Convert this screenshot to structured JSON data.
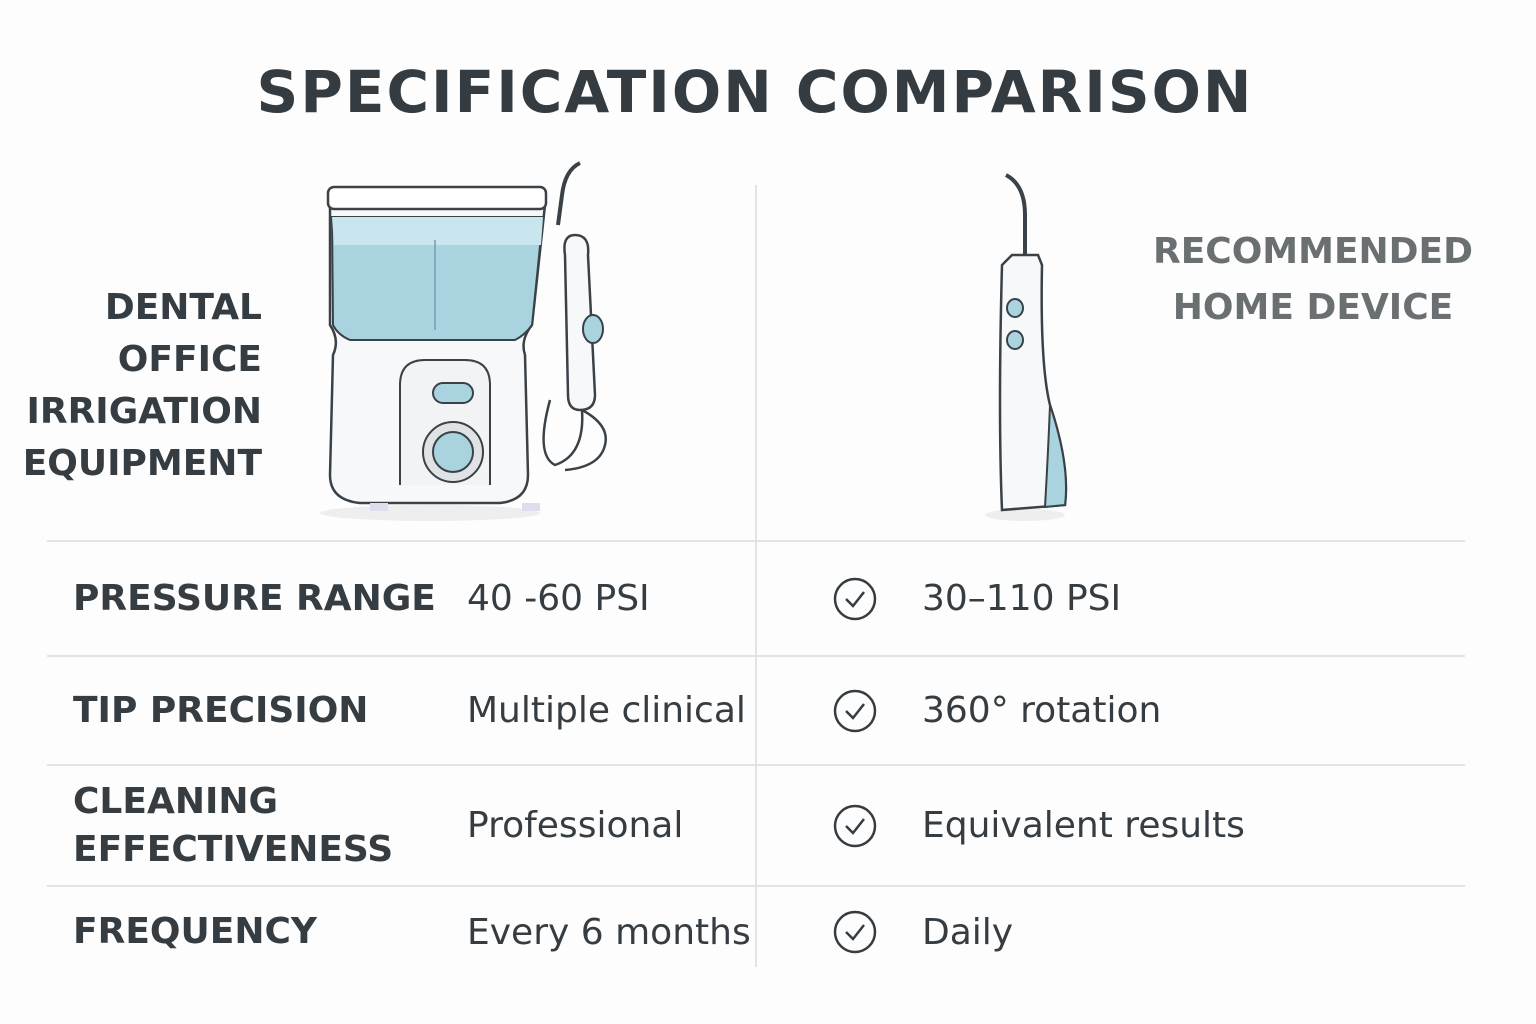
{
  "title": "SPECIFICATION COMPARISON",
  "left_column": {
    "label_lines": [
      "DENTAL",
      "OFFICE",
      "IRRIGATION",
      "EQUIPMENT"
    ],
    "image": "countertop-water-flosser"
  },
  "right_column": {
    "label_lines": [
      "RECOMMENDED",
      "HOME DEVICE"
    ],
    "image": "cordless-water-flosser"
  },
  "rows": [
    {
      "label_lines": [
        "PRESSURE RANGE"
      ],
      "office": "40 -60 PSI",
      "home": "30–110 PSI",
      "icon": "check-circle-icon"
    },
    {
      "label_lines": [
        "TIP PRECISION"
      ],
      "office": "Multiple clinical",
      "home": "360° rotation",
      "icon": "check-circle-icon"
    },
    {
      "label_lines": [
        "CLEANING",
        "EFFECTIVENESS"
      ],
      "office": "Professional",
      "home": "Equivalent results",
      "icon": "check-circle-icon"
    },
    {
      "label_lines": [
        "FREQUENCY"
      ],
      "office": "Every 6 months",
      "home": "Daily",
      "icon": "check-circle-icon"
    }
  ],
  "colors": {
    "text": "#363d42",
    "water": "#a9d3df",
    "divider": "#e1e3e4",
    "muted": "#6a6f72"
  }
}
